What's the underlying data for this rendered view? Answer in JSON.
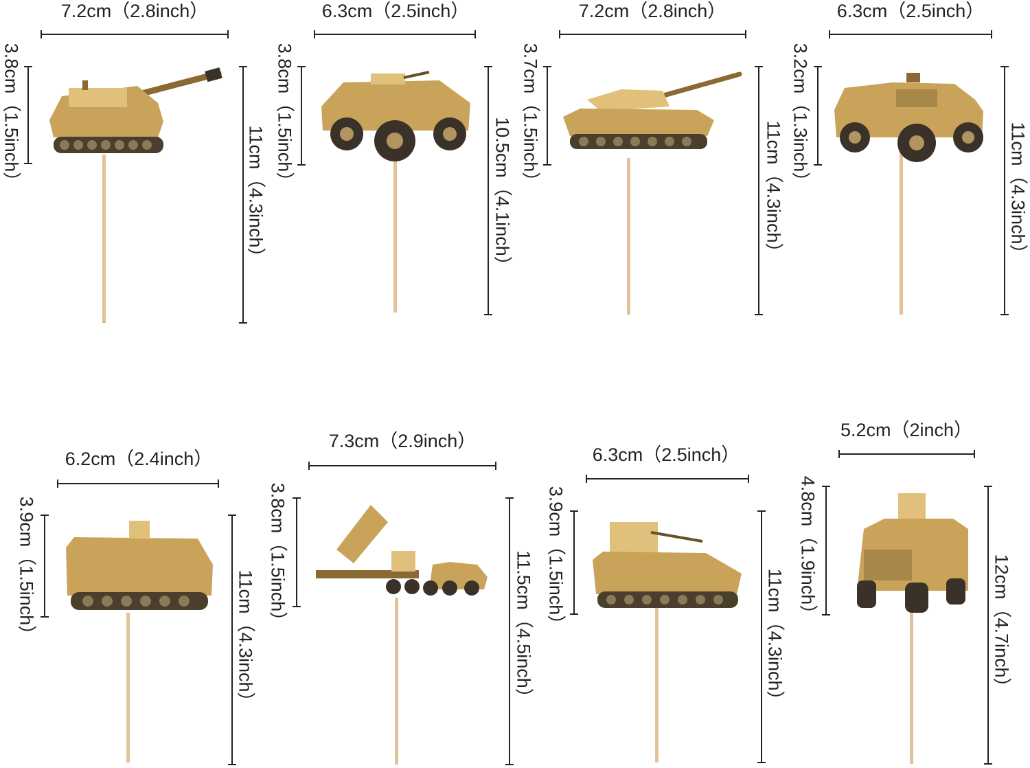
{
  "toppers": [
    {
      "name": "self-propelled-howitzer",
      "width_label": "7.2cm（2.8inch）",
      "image_height_label": "3.8cm（1.5inch）",
      "total_height_label": "11cm（4.3inch）"
    },
    {
      "name": "wheeled-armored-vehicle",
      "width_label": "6.3cm（2.5inch）",
      "image_height_label": "3.8cm（1.5inch）",
      "total_height_label": "10.5cm（4.1inch）"
    },
    {
      "name": "main-battle-tank",
      "width_label": "7.2cm（2.8inch）",
      "image_height_label": "3.7cm（1.5inch）",
      "total_height_label": "11cm（4.3inch）"
    },
    {
      "name": "humvee",
      "width_label": "6.3cm（2.5inch）",
      "image_height_label": "3.2cm（1.3inch）",
      "total_height_label": "11cm（4.3inch）"
    },
    {
      "name": "armored-personnel-carrier",
      "width_label": "6.2cm（2.4inch）",
      "image_height_label": "3.9cm（1.5inch）",
      "total_height_label": "11cm（4.3inch）"
    },
    {
      "name": "missile-launcher-truck",
      "width_label": "7.3cm（2.9inch）",
      "image_height_label": "3.8cm（1.5inch）",
      "total_height_label": "11.5cm（4.5inch）"
    },
    {
      "name": "infantry-fighting-vehicle",
      "width_label": "6.3cm（2.5inch）",
      "image_height_label": "3.9cm（1.5inch）",
      "total_height_label": "11cm（4.3inch）"
    },
    {
      "name": "mrap-truck",
      "width_label": "5.2cm（2inch）",
      "image_height_label": "4.8cm（1.9inch）",
      "total_height_label": "12cm（4.7inch）"
    }
  ],
  "colors": {
    "tan": "#c9a35a",
    "tan_light": "#e0c07a",
    "tan_dark": "#8a6a32",
    "track": "#4a3e2c",
    "stick": "#e2c29a",
    "line": "#222222"
  }
}
